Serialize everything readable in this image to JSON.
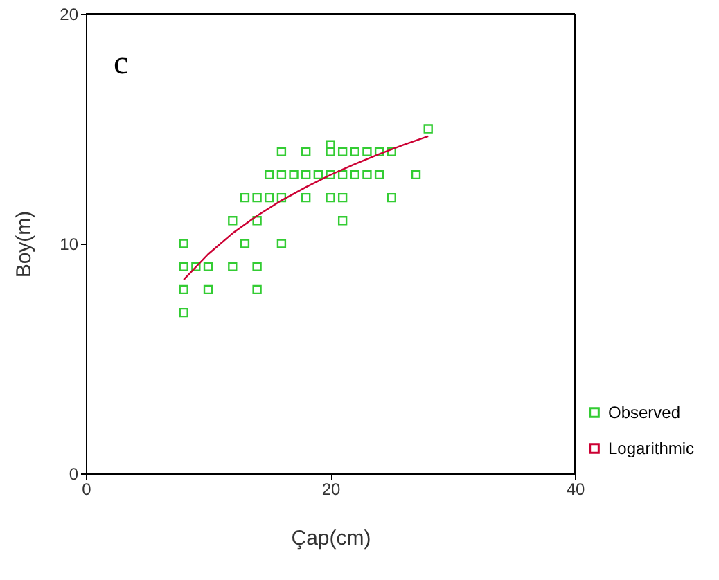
{
  "chart_data": {
    "type": "scatter",
    "xlabel": "Çap(cm)",
    "ylabel": "Boy(m)",
    "annotations": [
      "c"
    ],
    "xlim": [
      0,
      40
    ],
    "ylim": [
      0,
      20
    ],
    "xticks": [
      0,
      20,
      40
    ],
    "yticks": [
      0,
      10,
      20
    ],
    "grid": false,
    "legend": "bottom right",
    "series": [
      {
        "name": "Observed",
        "type": "scatter",
        "marker": "square",
        "color": "#33cc33",
        "x": [
          8,
          8,
          8,
          8,
          9,
          10,
          10,
          12,
          12,
          13,
          13,
          14,
          14,
          14,
          14,
          15,
          15,
          16,
          16,
          16,
          16,
          17,
          18,
          18,
          18,
          19,
          20,
          20,
          20,
          20,
          21,
          21,
          21,
          21,
          22,
          22,
          23,
          23,
          24,
          24,
          25,
          25,
          27,
          28
        ],
        "values": [
          10,
          9,
          8,
          7,
          9,
          9,
          8,
          11,
          9,
          12,
          10,
          12,
          11,
          9,
          8,
          13,
          12,
          14,
          13,
          12,
          10,
          13,
          14,
          13,
          12,
          13,
          14.3,
          14,
          13,
          12,
          14,
          13,
          12,
          11,
          14,
          13,
          14,
          13,
          14,
          13,
          14,
          12,
          13,
          15
        ]
      },
      {
        "name": "Logarithmic",
        "type": "line",
        "color": "#cc0033",
        "x": [
          8,
          10,
          12,
          14,
          16,
          18,
          20,
          22,
          24,
          26,
          28
        ],
        "values": [
          8.43,
          9.54,
          10.45,
          11.21,
          11.88,
          12.46,
          12.99,
          13.46,
          13.9,
          14.3,
          14.67
        ]
      }
    ]
  }
}
